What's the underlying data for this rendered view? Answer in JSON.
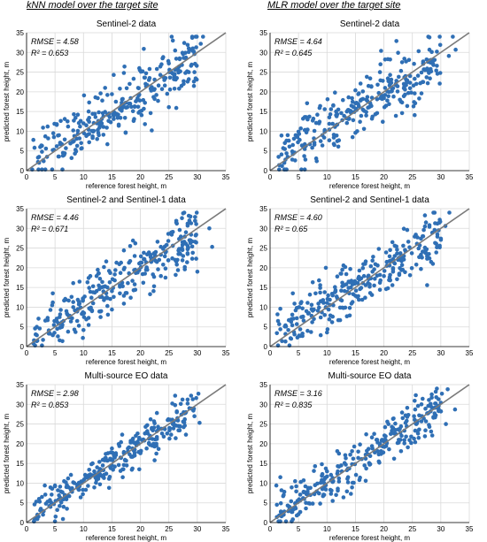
{
  "columns": [
    {
      "title": "kNN model over the target site"
    },
    {
      "title": "MLR model over the target site"
    }
  ],
  "colors": {
    "points": "#2f6fb5",
    "line": "#7a7a7a",
    "grid": "#d9d9d9",
    "axis": "#000000"
  },
  "chart_data": [
    {
      "type": "scatter",
      "title": "Sentinel-2 data",
      "xlabel": "reference forest height, m",
      "ylabel": "predicted forest height, m",
      "xlim": [
        0,
        35
      ],
      "ylim": [
        0,
        35
      ],
      "xticks": [
        0,
        5,
        10,
        15,
        20,
        25,
        30,
        35
      ],
      "yticks": [
        0,
        5,
        10,
        15,
        20,
        25,
        30,
        35
      ],
      "grid": true,
      "rmse_label": "RMSE = 4.58",
      "r2_label": "R² = 0.653",
      "noise": 3.6,
      "slope": 0.93,
      "offset": 1.2,
      "seed": 11,
      "x": [],
      "y": []
    },
    {
      "type": "scatter",
      "title": "Sentinel-2 data",
      "xlabel": "reference forest height, m",
      "ylabel": "predicted forest height, m",
      "xlim": [
        0,
        35
      ],
      "ylim": [
        0,
        35
      ],
      "xticks": [
        0,
        5,
        10,
        15,
        20,
        25,
        30,
        35
      ],
      "yticks": [
        0,
        5,
        10,
        15,
        20,
        25,
        30,
        35
      ],
      "grid": true,
      "rmse_label": "RMSE = 4.64",
      "r2_label": "R² = 0.645",
      "noise": 3.7,
      "slope": 0.85,
      "offset": 2.5,
      "seed": 23,
      "x": [],
      "y": []
    },
    {
      "type": "scatter",
      "title": "Sentinel-2 and Sentinel-1 data",
      "xlabel": "reference forest height, m",
      "ylabel": "predicted forest height, m",
      "xlim": [
        0,
        35
      ],
      "ylim": [
        0,
        35
      ],
      "xticks": [
        0,
        5,
        10,
        15,
        20,
        25,
        30,
        35
      ],
      "yticks": [
        0,
        5,
        10,
        15,
        20,
        25,
        30,
        35
      ],
      "grid": true,
      "rmse_label": "RMSE = 4.46",
      "r2_label": "R² = 0.671",
      "noise": 3.5,
      "slope": 0.92,
      "offset": 1.3,
      "seed": 37,
      "x": [],
      "y": []
    },
    {
      "type": "scatter",
      "title": "Sentinel-2 and Sentinel-1 data",
      "xlabel": "reference forest height, m",
      "ylabel": "predicted forest height, m",
      "xlim": [
        0,
        35
      ],
      "ylim": [
        0,
        35
      ],
      "xticks": [
        0,
        5,
        10,
        15,
        20,
        25,
        30,
        35
      ],
      "yticks": [
        0,
        5,
        10,
        15,
        20,
        25,
        30,
        35
      ],
      "grid": true,
      "rmse_label": "RMSE = 4.60",
      "r2_label": "R² = 0.65",
      "noise": 3.6,
      "slope": 0.86,
      "offset": 2.4,
      "seed": 41,
      "x": [],
      "y": []
    },
    {
      "type": "scatter",
      "title": "Multi-source EO data",
      "xlabel": "reference forest height, m",
      "ylabel": "predicted forest height, m",
      "xlim": [
        0,
        35
      ],
      "ylim": [
        0,
        35
      ],
      "xticks": [
        0,
        5,
        10,
        15,
        20,
        25,
        30,
        35
      ],
      "yticks": [
        0,
        5,
        10,
        15,
        20,
        25,
        30,
        35
      ],
      "grid": true,
      "rmse_label": "RMSE = 2.98",
      "r2_label": "R² = 0.853",
      "noise": 2.4,
      "slope": 0.95,
      "offset": 0.8,
      "seed": 53,
      "x": [],
      "y": []
    },
    {
      "type": "scatter",
      "title": "Multi-source EO data",
      "xlabel": "reference forest height, m",
      "ylabel": "predicted forest height, m",
      "xlim": [
        0,
        35
      ],
      "ylim": [
        0,
        35
      ],
      "xticks": [
        0,
        5,
        10,
        15,
        20,
        25,
        30,
        35
      ],
      "yticks": [
        0,
        5,
        10,
        15,
        20,
        25,
        30,
        35
      ],
      "grid": true,
      "rmse_label": "RMSE = 3.16",
      "r2_label": "R² = 0.835",
      "noise": 2.6,
      "slope": 0.94,
      "offset": 1.0,
      "seed": 67,
      "x": [],
      "y": []
    }
  ]
}
